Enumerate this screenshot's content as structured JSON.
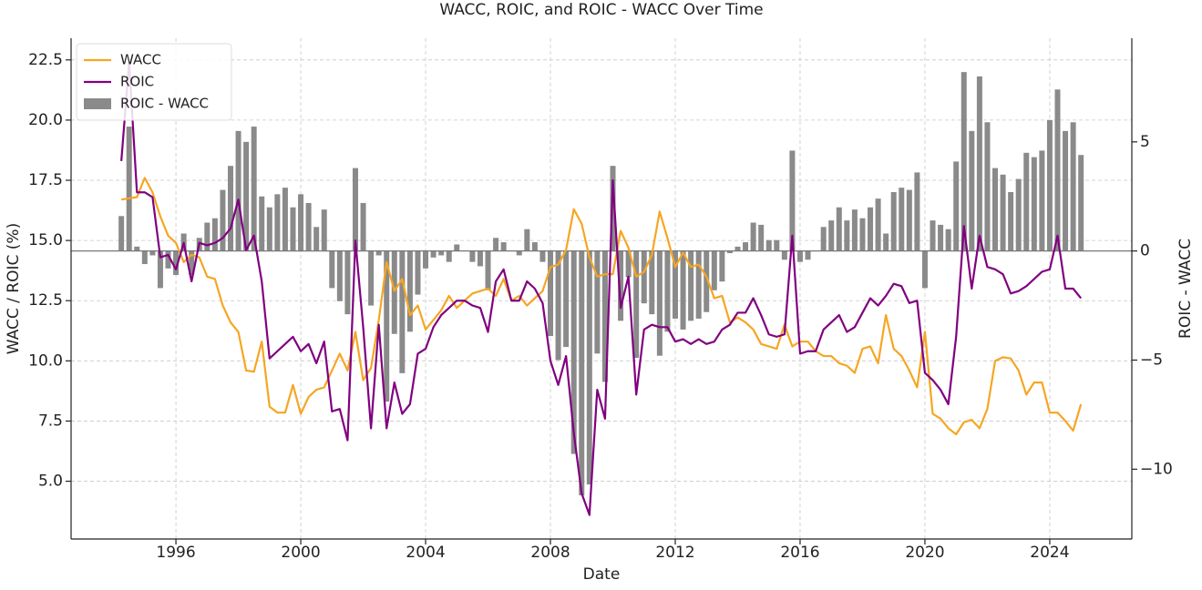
{
  "chart_data": {
    "type": "line",
    "title": "WACC, ROIC, and ROIC - WACC Over Time",
    "xlabel": "Date",
    "ylabel": "WACC / ROIC (%)",
    "y2label": "ROIC - WACC",
    "legend": "upper left",
    "grid": true,
    "x": [
      1994.25,
      1994.5,
      1994.75,
      1995,
      1995.25,
      1995.5,
      1995.75,
      1996,
      1996.25,
      1996.5,
      1996.75,
      1997,
      1997.25,
      1997.5,
      1997.75,
      1998,
      1998.25,
      1998.5,
      1998.75,
      1999,
      1999.25,
      1999.5,
      1999.75,
      2000,
      2000.25,
      2000.5,
      2000.75,
      2001,
      2001.25,
      2001.5,
      2001.75,
      2002,
      2002.25,
      2002.5,
      2002.75,
      2003,
      2003.25,
      2003.5,
      2003.75,
      2004,
      2004.25,
      2004.5,
      2004.75,
      2005,
      2005.25,
      2005.5,
      2005.75,
      2006,
      2006.25,
      2006.5,
      2006.75,
      2007,
      2007.25,
      2007.5,
      2007.75,
      2008,
      2008.25,
      2008.5,
      2008.75,
      2009,
      2009.25,
      2009.5,
      2009.75,
      2010,
      2010.25,
      2010.5,
      2010.75,
      2011,
      2011.25,
      2011.5,
      2011.75,
      2012,
      2012.25,
      2012.5,
      2012.75,
      2013,
      2013.25,
      2013.5,
      2013.75,
      2014,
      2014.25,
      2014.5,
      2014.75,
      2015,
      2015.25,
      2015.5,
      2015.75,
      2016,
      2016.25,
      2016.5,
      2016.75,
      2017,
      2017.25,
      2017.5,
      2017.75,
      2018,
      2018.25,
      2018.5,
      2018.75,
      2019,
      2019.25,
      2019.5,
      2019.75,
      2020,
      2020.25,
      2020.5,
      2020.75,
      2021,
      2021.25,
      2021.5,
      2021.75,
      2022,
      2022.25,
      2022.5,
      2022.75,
      2023,
      2023.25,
      2023.5,
      2023.75,
      2024,
      2024.25,
      2024.5,
      2024.75,
      2025
    ],
    "series": [
      {
        "name": "WACC",
        "color": "#f5a623",
        "type": "line",
        "values": [
          16.7,
          16.75,
          16.8,
          17.6,
          17.0,
          16.0,
          15.2,
          14.9,
          14.1,
          14.4,
          14.3,
          13.5,
          13.4,
          12.3,
          11.6,
          11.2,
          9.6,
          9.55,
          10.8,
          8.1,
          7.85,
          7.85,
          9.0,
          7.8,
          8.5,
          8.8,
          8.9,
          9.6,
          10.3,
          9.6,
          11.2,
          9.2,
          9.7,
          11.7,
          14.1,
          12.9,
          13.4,
          11.9,
          12.3,
          11.3,
          11.7,
          12.1,
          12.7,
          12.2,
          12.5,
          12.8,
          12.9,
          13.0,
          12.7,
          13.4,
          12.5,
          12.7,
          12.3,
          12.6,
          12.9,
          13.9,
          14.0,
          14.6,
          16.3,
          15.7,
          14.3,
          13.5,
          13.6,
          13.6,
          15.4,
          14.7,
          13.5,
          13.7,
          14.4,
          16.2,
          15.1,
          13.9,
          14.5,
          13.9,
          14.0,
          13.5,
          12.6,
          12.7,
          11.6,
          11.8,
          11.6,
          11.3,
          10.7,
          10.6,
          10.5,
          11.5,
          10.6,
          10.8,
          10.8,
          10.4,
          10.2,
          10.2,
          9.9,
          9.8,
          9.5,
          10.5,
          10.6,
          9.9,
          11.9,
          10.5,
          10.2,
          9.6,
          8.9,
          11.2,
          7.8,
          7.6,
          7.2,
          6.95,
          7.45,
          7.55,
          7.2,
          8.0,
          10.0,
          10.15,
          10.1,
          9.6,
          8.6,
          9.1,
          9.1,
          7.85,
          7.85,
          7.5,
          7.1,
          8.2
        ]
      },
      {
        "name": "ROIC",
        "color": "#800080",
        "type": "line",
        "values": [
          18.3,
          22.4,
          17.0,
          17.0,
          16.8,
          14.3,
          14.4,
          13.8,
          14.9,
          13.3,
          14.9,
          14.8,
          14.9,
          15.1,
          15.5,
          16.7,
          14.6,
          15.2,
          13.3,
          10.1,
          10.4,
          10.7,
          11.0,
          10.4,
          10.7,
          9.9,
          10.8,
          7.9,
          8.0,
          6.7,
          15.0,
          11.4,
          7.2,
          11.5,
          7.2,
          9.1,
          7.8,
          8.2,
          10.3,
          10.5,
          11.4,
          11.9,
          12.2,
          12.5,
          12.5,
          12.3,
          12.2,
          11.2,
          13.3,
          13.8,
          12.5,
          12.5,
          13.3,
          13.0,
          12.4,
          10.0,
          9.0,
          10.2,
          7.0,
          4.5,
          3.6,
          8.8,
          7.6,
          17.5,
          12.2,
          13.5,
          8.6,
          11.3,
          11.5,
          11.4,
          11.4,
          10.8,
          10.9,
          10.7,
          10.9,
          10.7,
          10.8,
          11.3,
          11.5,
          12.0,
          12.0,
          12.6,
          11.9,
          11.1,
          11.0,
          11.1,
          15.2,
          10.3,
          10.4,
          10.4,
          11.3,
          11.6,
          11.9,
          11.2,
          11.4,
          12.0,
          12.6,
          12.3,
          12.7,
          13.2,
          13.1,
          12.4,
          12.5,
          9.5,
          9.2,
          8.8,
          8.2,
          11.0,
          15.6,
          13.0,
          15.2,
          13.9,
          13.8,
          13.6,
          12.8,
          12.9,
          13.1,
          13.4,
          13.7,
          13.8,
          15.2,
          13.0,
          13.0,
          12.6
        ]
      },
      {
        "name": "ROIC - WACC",
        "color": "#8a8a8a",
        "type": "bar",
        "axis": "y2",
        "values": [
          1.6,
          5.7,
          0.2,
          -0.6,
          -0.2,
          -1.7,
          -0.8,
          -1.1,
          0.8,
          -1.1,
          0.6,
          1.3,
          1.5,
          2.8,
          3.9,
          5.5,
          5.0,
          5.7,
          2.5,
          2.0,
          2.6,
          2.9,
          2.0,
          2.6,
          2.2,
          1.1,
          1.9,
          -1.7,
          -2.3,
          -2.9,
          3.8,
          2.2,
          -2.5,
          -0.2,
          -6.9,
          -3.8,
          -5.6,
          -3.7,
          -2.0,
          -0.8,
          -0.3,
          -0.2,
          -0.5,
          0.3,
          0.0,
          -0.5,
          -0.7,
          -1.8,
          0.6,
          0.4,
          0.0,
          -0.2,
          1.0,
          0.4,
          -0.5,
          -3.9,
          -5.0,
          -4.4,
          -9.3,
          -11.2,
          -10.7,
          -4.7,
          -6.0,
          3.9,
          -3.2,
          -1.2,
          -4.9,
          -2.4,
          -2.9,
          -4.8,
          -3.7,
          -3.1,
          -3.6,
          -3.2,
          -3.1,
          -2.8,
          -1.8,
          -1.4,
          -0.1,
          0.2,
          0.4,
          1.3,
          1.2,
          0.5,
          0.5,
          -0.4,
          4.6,
          -0.5,
          -0.4,
          0.0,
          1.1,
          1.4,
          2.0,
          1.4,
          1.9,
          1.5,
          2.0,
          2.4,
          0.8,
          2.7,
          2.9,
          2.8,
          3.6,
          -1.7,
          1.4,
          1.2,
          1.0,
          4.1,
          8.2,
          5.5,
          8.0,
          5.9,
          3.8,
          3.5,
          2.7,
          3.3,
          4.5,
          4.3,
          4.6,
          6.0,
          7.4,
          5.5,
          5.9,
          4.4
        ]
      }
    ],
    "xlim": [
      1992.64,
      2026.63
    ],
    "xticks": [
      1996,
      2000,
      2004,
      2008,
      2012,
      2016,
      2020,
      2024
    ],
    "ylim": [
      2.6,
      23.4
    ],
    "yticks": [
      {
        "value": 5,
        "label": "5.0"
      },
      7.5,
      {
        "value": 10,
        "label": "10.0"
      },
      12.5,
      {
        "value": 15,
        "label": "15.0"
      },
      17.5,
      {
        "value": 20,
        "label": "20.0"
      },
      22.5
    ],
    "y2lim": [
      -13.2,
      9.75
    ],
    "y2ticks": [
      {
        "value": -10,
        "label": "−10"
      },
      {
        "value": -5,
        "label": "−5"
      },
      0,
      5
    ]
  }
}
